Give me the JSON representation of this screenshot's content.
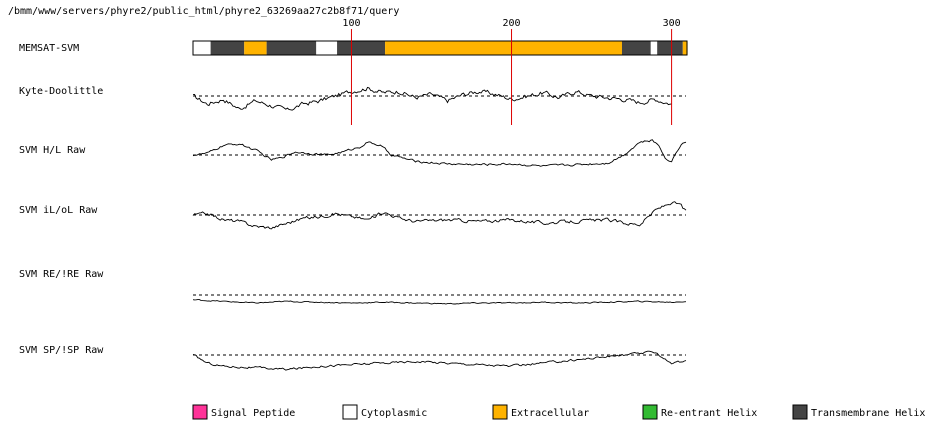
{
  "header": {
    "path": "/bmm/www/servers/phyre2/public_html/phyre2_63269aa27c2b8f71/query"
  },
  "colors": {
    "signal_peptide": "#ff3399",
    "cytoplasmic": "#ffffff",
    "extracellular": "#ffb300",
    "reentrant_helix": "#33bb33",
    "transmembrane_helix": "#444444",
    "marker": "#dd0000",
    "trace": "#000000",
    "baseline": "#000000"
  },
  "chart_data": {
    "type": "line",
    "title": "",
    "sequence_length": 309,
    "x_ticks": [
      100,
      200,
      300
    ],
    "topology": {
      "label": "MEMSAT-SVM",
      "segments": [
        {
          "start": 1,
          "end": 11,
          "type": "cytoplasmic"
        },
        {
          "start": 12,
          "end": 32,
          "type": "transmembrane_helix"
        },
        {
          "start": 33,
          "end": 46,
          "type": "extracellular"
        },
        {
          "start": 47,
          "end": 77,
          "type": "transmembrane_helix"
        },
        {
          "start": 78,
          "end": 90,
          "type": "cytoplasmic"
        },
        {
          "start": 91,
          "end": 120,
          "type": "transmembrane_helix"
        },
        {
          "start": 121,
          "end": 268,
          "type": "extracellular"
        },
        {
          "start": 269,
          "end": 286,
          "type": "transmembrane_helix"
        },
        {
          "start": 287,
          "end": 290,
          "type": "cytoplasmic"
        },
        {
          "start": 291,
          "end": 306,
          "type": "transmembrane_helix"
        },
        {
          "start": 307,
          "end": 309,
          "type": "extracellular"
        }
      ]
    },
    "tracks": [
      {
        "label": "Kyte-Doolittle",
        "x_end": 300,
        "anchors": [
          [
            1,
            0
          ],
          [
            10,
            -0.5
          ],
          [
            20,
            -0.2
          ],
          [
            30,
            -0.8
          ],
          [
            40,
            -0.3
          ],
          [
            50,
            -0.6
          ],
          [
            60,
            -0.9
          ],
          [
            70,
            -0.5
          ],
          [
            80,
            -0.3
          ],
          [
            90,
            0
          ],
          [
            100,
            0.3
          ],
          [
            110,
            0.5
          ],
          [
            120,
            0.2
          ],
          [
            130,
            0.3
          ],
          [
            140,
            -0.1
          ],
          [
            150,
            0.1
          ],
          [
            160,
            -0.3
          ],
          [
            170,
            0.1
          ],
          [
            180,
            0.3
          ],
          [
            190,
            0.1
          ],
          [
            200,
            -0.2
          ],
          [
            210,
            0
          ],
          [
            220,
            0.2
          ],
          [
            230,
            -0.1
          ],
          [
            240,
            0.3
          ],
          [
            250,
            0
          ],
          [
            260,
            -0.1
          ],
          [
            270,
            -0.2
          ],
          [
            280,
            -0.4
          ],
          [
            290,
            -0.2
          ],
          [
            300,
            -0.5
          ]
        ],
        "noise": 0.25
      },
      {
        "label": "SVM H/L Raw",
        "x_end": 309,
        "anchors": [
          [
            1,
            0
          ],
          [
            10,
            0.1
          ],
          [
            20,
            0.6
          ],
          [
            30,
            0.7
          ],
          [
            40,
            0.3
          ],
          [
            45,
            0
          ],
          [
            50,
            -0.3
          ],
          [
            55,
            -0.2
          ],
          [
            65,
            0.2
          ],
          [
            75,
            0.1
          ],
          [
            85,
            0
          ],
          [
            95,
            0.2
          ],
          [
            105,
            0.5
          ],
          [
            110,
            0.8
          ],
          [
            118,
            0.6
          ],
          [
            125,
            0
          ],
          [
            140,
            -0.4
          ],
          [
            160,
            -0.55
          ],
          [
            180,
            -0.6
          ],
          [
            200,
            -0.55
          ],
          [
            220,
            -0.7
          ],
          [
            240,
            -0.6
          ],
          [
            260,
            -0.5
          ],
          [
            270,
            0
          ],
          [
            280,
            0.8
          ],
          [
            288,
            0.9
          ],
          [
            292,
            0.6
          ],
          [
            297,
            -0.3
          ],
          [
            300,
            -0.4
          ],
          [
            303,
            0.2
          ],
          [
            306,
            0.7
          ],
          [
            309,
            0.8
          ]
        ],
        "noise": 0.12
      },
      {
        "label": "SVM iL/oL Raw",
        "x_end": 309,
        "anchors": [
          [
            1,
            0
          ],
          [
            10,
            0.1
          ],
          [
            20,
            -0.3
          ],
          [
            30,
            -0.4
          ],
          [
            40,
            -0.7
          ],
          [
            50,
            -0.8
          ],
          [
            60,
            -0.5
          ],
          [
            70,
            -0.2
          ],
          [
            80,
            -0.1
          ],
          [
            90,
            0.1
          ],
          [
            100,
            -0.1
          ],
          [
            110,
            -0.3
          ],
          [
            120,
            0.2
          ],
          [
            130,
            -0.2
          ],
          [
            140,
            -0.4
          ],
          [
            160,
            -0.3
          ],
          [
            180,
            -0.4
          ],
          [
            200,
            -0.3
          ],
          [
            220,
            -0.5
          ],
          [
            240,
            -0.4
          ],
          [
            260,
            -0.3
          ],
          [
            270,
            -0.5
          ],
          [
            280,
            -0.6
          ],
          [
            290,
            0.3
          ],
          [
            300,
            0.8
          ],
          [
            306,
            0.6
          ],
          [
            309,
            0.2
          ]
        ],
        "noise": 0.18
      },
      {
        "label": "SVM RE/!RE Raw",
        "x_end": 309,
        "anchors": [
          [
            1,
            -0.3
          ],
          [
            20,
            -0.4
          ],
          [
            40,
            -0.5
          ],
          [
            60,
            -0.4
          ],
          [
            80,
            -0.45
          ],
          [
            100,
            -0.5
          ],
          [
            120,
            -0.45
          ],
          [
            140,
            -0.5
          ],
          [
            160,
            -0.55
          ],
          [
            180,
            -0.5
          ],
          [
            200,
            -0.5
          ],
          [
            220,
            -0.45
          ],
          [
            240,
            -0.5
          ],
          [
            260,
            -0.45
          ],
          [
            280,
            -0.4
          ],
          [
            300,
            -0.45
          ],
          [
            309,
            -0.4
          ]
        ],
        "noise": 0.06
      },
      {
        "label": "SVM SP/!SP Raw",
        "x_end": 309,
        "anchors": [
          [
            1,
            0
          ],
          [
            10,
            -0.5
          ],
          [
            20,
            -0.7
          ],
          [
            40,
            -0.8
          ],
          [
            60,
            -0.9
          ],
          [
            80,
            -0.7
          ],
          [
            100,
            -0.6
          ],
          [
            120,
            -0.5
          ],
          [
            140,
            -0.4
          ],
          [
            160,
            -0.5
          ],
          [
            180,
            -0.6
          ],
          [
            200,
            -0.7
          ],
          [
            220,
            -0.5
          ],
          [
            240,
            -0.3
          ],
          [
            260,
            -0.1
          ],
          [
            270,
            0
          ],
          [
            280,
            0.1
          ],
          [
            290,
            0.2
          ],
          [
            295,
            -0.2
          ],
          [
            300,
            -0.5
          ],
          [
            309,
            -0.4
          ]
        ],
        "noise": 0.12
      }
    ],
    "legend": [
      {
        "label": "Signal Peptide",
        "type": "signal_peptide"
      },
      {
        "label": "Cytoplasmic",
        "type": "cytoplasmic"
      },
      {
        "label": "Extracellular",
        "type": "extracellular"
      },
      {
        "label": "Re-entrant Helix",
        "type": "reentrant_helix"
      },
      {
        "label": "Transmembrane Helix",
        "type": "transmembrane_helix"
      }
    ]
  }
}
